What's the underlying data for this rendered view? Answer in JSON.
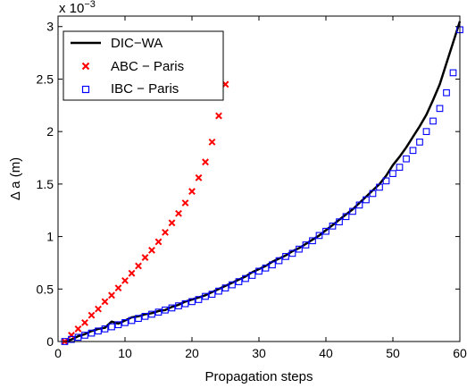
{
  "chart_data": {
    "type": "line",
    "title": "",
    "xlabel": "Propagation steps",
    "ylabel": "Δ a (m)",
    "y_exponent_label": "x 10",
    "y_exponent_power": "−3",
    "xlim": [
      0,
      60
    ],
    "ylim": [
      0,
      3.1
    ],
    "x_ticks": [
      0,
      10,
      20,
      30,
      40,
      50,
      60
    ],
    "x_tick_labels": [
      "0",
      "10",
      "20",
      "30",
      "40",
      "50",
      "60"
    ],
    "y_ticks": [
      0,
      0.5,
      1,
      1.5,
      2,
      2.5,
      3
    ],
    "y_tick_labels": [
      "0",
      "0.5",
      "1",
      "1.5",
      "2",
      "2.5",
      "3"
    ],
    "grid": false,
    "legend_position": "top-left",
    "series": [
      {
        "name": "DIC−WA",
        "style": "line",
        "color": "#000000",
        "x": [
          1,
          2,
          3,
          4,
          5,
          6,
          7,
          8,
          9,
          10,
          11,
          12,
          13,
          14,
          15,
          16,
          17,
          18,
          19,
          20,
          21,
          22,
          23,
          24,
          25,
          26,
          27,
          28,
          29,
          30,
          31,
          32,
          33,
          34,
          35,
          36,
          37,
          38,
          39,
          40,
          41,
          42,
          43,
          44,
          45,
          46,
          47,
          48,
          49,
          50,
          51,
          52,
          53,
          54,
          55,
          56,
          57,
          58,
          59,
          60
        ],
        "values": [
          0.0,
          0.02,
          0.05,
          0.07,
          0.1,
          0.12,
          0.13,
          0.19,
          0.17,
          0.2,
          0.23,
          0.24,
          0.26,
          0.27,
          0.29,
          0.3,
          0.33,
          0.35,
          0.38,
          0.4,
          0.42,
          0.44,
          0.47,
          0.5,
          0.53,
          0.56,
          0.59,
          0.62,
          0.66,
          0.69,
          0.72,
          0.76,
          0.79,
          0.82,
          0.86,
          0.89,
          0.93,
          0.97,
          1.01,
          1.06,
          1.11,
          1.16,
          1.21,
          1.26,
          1.32,
          1.38,
          1.44,
          1.5,
          1.58,
          1.68,
          1.76,
          1.85,
          1.95,
          2.05,
          2.16,
          2.3,
          2.45,
          2.65,
          2.85,
          3.05
        ]
      },
      {
        "name": "ABC − Paris",
        "style": "x-marker",
        "color": "#ff0000",
        "x": [
          1,
          2,
          3,
          4,
          5,
          6,
          7,
          8,
          9,
          10,
          11,
          12,
          13,
          14,
          15,
          16,
          17,
          18,
          19,
          20,
          21,
          22,
          23,
          24,
          25
        ],
        "values": [
          0.0,
          0.06,
          0.12,
          0.18,
          0.25,
          0.31,
          0.38,
          0.44,
          0.51,
          0.58,
          0.65,
          0.72,
          0.8,
          0.87,
          0.95,
          1.04,
          1.13,
          1.22,
          1.32,
          1.43,
          1.56,
          1.71,
          1.9,
          2.15,
          2.45
        ]
      },
      {
        "name": "IBC − Paris",
        "style": "square-marker",
        "color": "#0000ff",
        "x": [
          1,
          2,
          3,
          4,
          5,
          6,
          7,
          8,
          9,
          10,
          11,
          12,
          13,
          14,
          15,
          16,
          17,
          18,
          19,
          20,
          21,
          22,
          23,
          24,
          25,
          26,
          27,
          28,
          29,
          30,
          31,
          32,
          33,
          34,
          35,
          36,
          37,
          38,
          39,
          40,
          41,
          42,
          43,
          44,
          45,
          46,
          47,
          48,
          49,
          50,
          51,
          52,
          53,
          54,
          55,
          56,
          57,
          58,
          59,
          60
        ],
        "values": [
          0.0,
          0.02,
          0.04,
          0.06,
          0.08,
          0.1,
          0.12,
          0.14,
          0.16,
          0.18,
          0.2,
          0.22,
          0.24,
          0.26,
          0.28,
          0.3,
          0.32,
          0.34,
          0.36,
          0.38,
          0.4,
          0.43,
          0.45,
          0.48,
          0.51,
          0.54,
          0.57,
          0.6,
          0.63,
          0.67,
          0.7,
          0.73,
          0.77,
          0.81,
          0.84,
          0.88,
          0.92,
          0.96,
          1.01,
          1.05,
          1.1,
          1.14,
          1.19,
          1.24,
          1.3,
          1.35,
          1.41,
          1.47,
          1.53,
          1.6,
          1.66,
          1.74,
          1.82,
          1.9,
          2.0,
          2.1,
          2.22,
          2.37,
          2.56,
          2.97
        ]
      }
    ]
  }
}
